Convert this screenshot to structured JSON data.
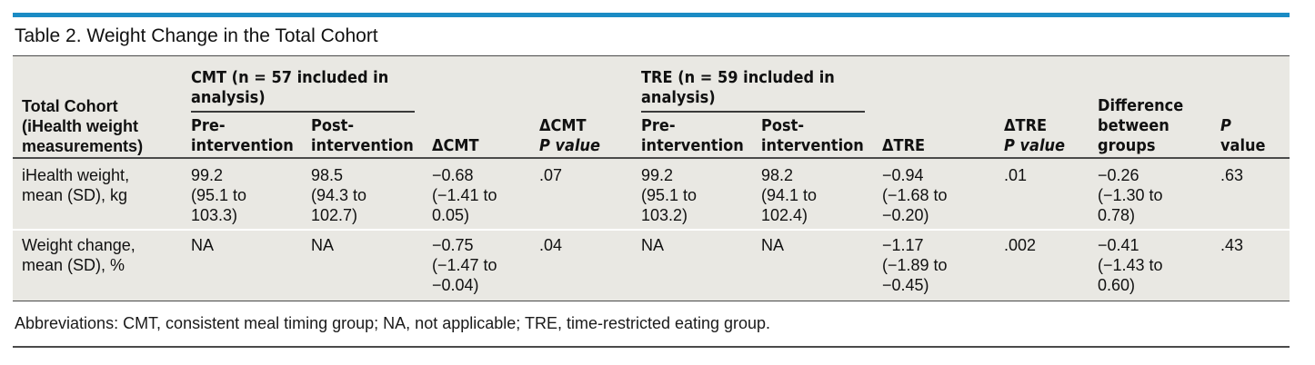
{
  "title": "Table 2. Weight Change in the Total Cohort",
  "headers": {
    "row_header": [
      "Total Cohort",
      "(iHealth weight",
      "measurements)"
    ],
    "cmt_group": [
      "CMT (n = 57 included in",
      "analysis)"
    ],
    "tre_group": [
      "TRE (n = 59 included in",
      "analysis)"
    ],
    "pre": [
      "Pre-",
      "intervention"
    ],
    "post": [
      "Post-",
      "intervention"
    ],
    "delta_cmt": "ΔCMT",
    "delta_cmt_p": [
      "ΔCMT",
      "P value"
    ],
    "delta_tre": "ΔTRE",
    "delta_tre_p": [
      "ΔTRE",
      "P value"
    ],
    "difference": [
      "Difference",
      "between",
      "groups"
    ],
    "p_value": [
      "P",
      "value"
    ]
  },
  "rows": [
    {
      "label": [
        "iHealth weight,",
        "mean (SD), kg"
      ],
      "cmt_pre": [
        "99.2",
        "(95.1 to",
        "103.3)"
      ],
      "cmt_post": [
        "98.5",
        "(94.3 to",
        "102.7)"
      ],
      "delta_cmt": [
        "−0.68",
        "(−1.41 to",
        "0.05)"
      ],
      "delta_cmt_p": ".07",
      "tre_pre": [
        "99.2",
        "(95.1 to",
        "103.2)"
      ],
      "tre_post": [
        "98.2",
        "(94.1 to",
        "102.4)"
      ],
      "delta_tre": [
        "−0.94",
        "(−1.68 to",
        "−0.20)"
      ],
      "delta_tre_p": ".01",
      "difference": [
        "−0.26",
        "(−1.30 to",
        "0.78)"
      ],
      "p_value": ".63"
    },
    {
      "label": [
        "Weight change,",
        "mean (SD), %"
      ],
      "cmt_pre": [
        "NA"
      ],
      "cmt_post": [
        "NA"
      ],
      "delta_cmt": [
        "−0.75",
        "(−1.47 to",
        "−0.04)"
      ],
      "delta_cmt_p": ".04",
      "tre_pre": [
        "NA"
      ],
      "tre_post": [
        "NA"
      ],
      "delta_tre": [
        "−1.17",
        "(−1.89 to",
        "−0.45)"
      ],
      "delta_tre_p": ".002",
      "difference": [
        "−0.41",
        "(−1.43 to",
        "0.60)"
      ],
      "p_value": ".43"
    }
  ],
  "footnote": "Abbreviations: CMT, consistent meal timing group; NA, not applicable; TRE, time-restricted eating group.",
  "colors": {
    "accent_rule": "#1a8bc4",
    "table_background": "#e9e8e3"
  }
}
